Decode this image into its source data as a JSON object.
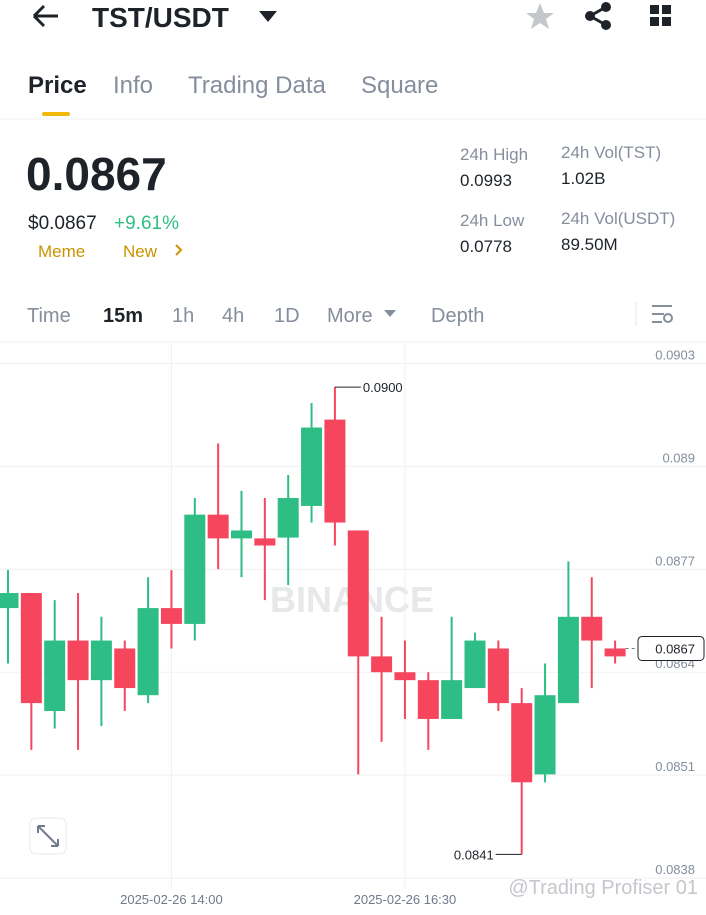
{
  "header": {
    "pair": "TST/USDT"
  },
  "tabs": [
    "Price",
    "Info",
    "Trading Data",
    "Square"
  ],
  "summary": {
    "price": "0.0867",
    "price_usd": "$0.0867",
    "change": "+9.61%",
    "tags": [
      "Meme",
      "New"
    ]
  },
  "stats": [
    {
      "label": "24h High",
      "value": "0.0993"
    },
    {
      "label": "24h Vol(TST)",
      "value": "1.02B"
    },
    {
      "label": "24h Low",
      "value": "0.0778"
    },
    {
      "label": "24h Vol(USDT)",
      "value": "89.50M"
    }
  ],
  "timeframes": [
    "Time",
    "15m",
    "1h",
    "4h",
    "1D",
    "More",
    "Depth"
  ],
  "watermark": "BINANCE",
  "credit": "@Trading Profiser 01",
  "chart_data": {
    "type": "candlestick",
    "categories": [
      null,
      null,
      null,
      null,
      null,
      null,
      null,
      "2025-02-26 14:00",
      null,
      null,
      null,
      null,
      null,
      null,
      null,
      null,
      null,
      "2025-02-26 16:30",
      null,
      null,
      null,
      null,
      null,
      null,
      null,
      null,
      null
    ],
    "series": {
      "open": [
        0.08721,
        0.0874,
        0.08591,
        0.0868,
        0.0863,
        0.0867,
        0.08611,
        0.08721,
        0.08701,
        0.08839,
        0.08809,
        0.08809,
        0.0881,
        0.0885,
        0.08959,
        0.08819,
        0.0866,
        0.0864,
        0.0863,
        0.08581,
        0.0862,
        0.0867,
        0.08601,
        0.08511,
        0.08601,
        0.0871,
        0.0867
      ],
      "high": [
        0.08769,
        0.0874,
        0.08731,
        0.0874,
        0.0871,
        0.0868,
        0.0876,
        0.08769,
        0.0886,
        0.08929,
        0.08869,
        0.0886,
        0.08889,
        0.0898,
        0.09,
        0.08819,
        0.0871,
        0.0868,
        0.0864,
        0.0871,
        0.0869,
        0.0868,
        0.0862,
        0.08651,
        0.0878,
        0.0876,
        0.0868
      ],
      "low": [
        0.08651,
        0.08542,
        0.08569,
        0.08542,
        0.08572,
        0.08591,
        0.08601,
        0.0867,
        0.0868,
        0.0877,
        0.0876,
        0.08731,
        0.0875,
        0.08829,
        0.088,
        0.08511,
        0.08552,
        0.08581,
        0.08542,
        0.08581,
        0.0862,
        0.08591,
        0.0841,
        0.08501,
        0.08601,
        0.0862,
        0.08651
      ],
      "close": [
        0.0874,
        0.08601,
        0.0868,
        0.0863,
        0.0868,
        0.0862,
        0.08721,
        0.08701,
        0.08839,
        0.08809,
        0.08819,
        0.088,
        0.0886,
        0.08949,
        0.08829,
        0.0866,
        0.0864,
        0.0863,
        0.08581,
        0.0863,
        0.0868,
        0.08601,
        0.08501,
        0.08611,
        0.0871,
        0.0868,
        0.0866
      ]
    },
    "up_color": "#2ebd85",
    "down_color": "#f6465d",
    "ylim": [
      0.08365,
      0.09057
    ],
    "yticks": [
      0.0838,
      0.0851,
      0.0864,
      0.0877,
      0.089,
      0.0903
    ],
    "annotations": [
      {
        "value": 0.09,
        "label": "0.0900"
      },
      {
        "value": 0.0841,
        "label": "0.0841"
      }
    ],
    "last_price": {
      "value": 0.0867,
      "label": "0.0867"
    }
  }
}
